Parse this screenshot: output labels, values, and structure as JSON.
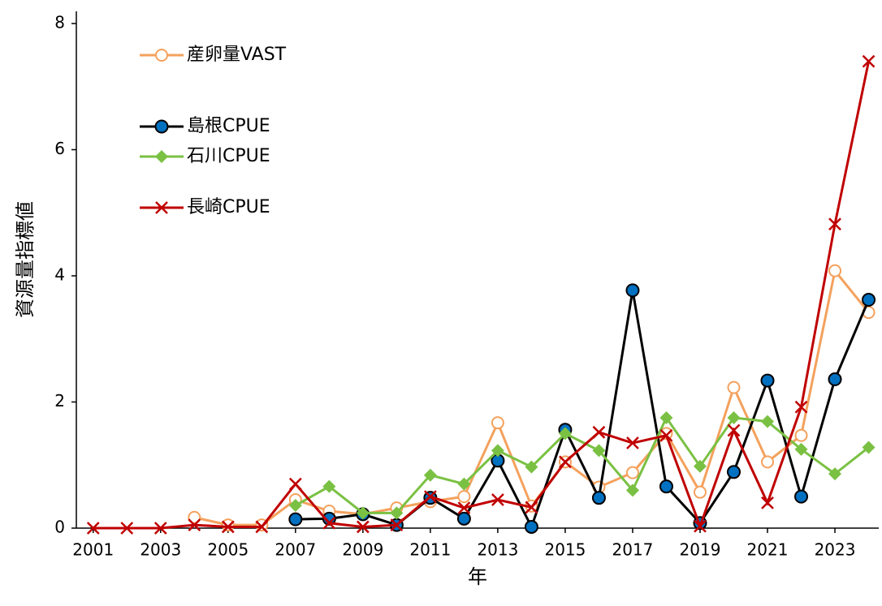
{
  "chart_data": {
    "type": "line",
    "xlabel": "年",
    "ylabel": "資源量指標値",
    "x": [
      2001,
      2002,
      2003,
      2004,
      2005,
      2006,
      2007,
      2008,
      2009,
      2010,
      2011,
      2012,
      2013,
      2014,
      2015,
      2016,
      2017,
      2018,
      2019,
      2020,
      2021,
      2022,
      2023,
      2024
    ],
    "series": [
      {
        "name": "産卵量VAST",
        "color": "#f4a15d",
        "values": [
          null,
          null,
          null,
          0.17,
          0.05,
          0.05,
          0.45,
          0.27,
          0.22,
          0.32,
          0.42,
          0.5,
          1.67,
          0.35,
          1.05,
          0.65,
          0.88,
          1.5,
          0.57,
          2.23,
          1.05,
          1.47,
          4.08,
          3.42
        ]
      },
      {
        "name": "島根CPUE",
        "color": "#000000",
        "values": [
          null,
          null,
          null,
          null,
          null,
          null,
          0.14,
          0.15,
          0.22,
          0.05,
          0.48,
          0.15,
          1.07,
          0.02,
          1.56,
          0.48,
          3.77,
          0.66,
          0.08,
          0.89,
          2.34,
          0.5,
          2.36,
          3.62
        ]
      },
      {
        "name": "石川CPUE",
        "color": "#7ac143",
        "values": [
          null,
          null,
          null,
          null,
          null,
          null,
          0.36,
          0.66,
          0.24,
          0.24,
          0.84,
          0.7,
          1.23,
          0.97,
          1.5,
          1.23,
          0.6,
          1.75,
          0.98,
          1.75,
          1.69,
          1.25,
          0.86,
          1.28
        ]
      },
      {
        "name": "長崎CPUE",
        "color": "#c00000",
        "values": [
          0,
          0,
          0,
          0.05,
          0.02,
          0.02,
          0.7,
          0.08,
          0.02,
          0.05,
          0.5,
          0.32,
          0.45,
          0.33,
          1.05,
          1.52,
          1.35,
          1.47,
          0.03,
          1.55,
          0.4,
          1.92,
          4.82,
          7.4
        ]
      }
    ],
    "xlim": [
      2000.5,
      2024.3
    ],
    "xticks": [
      2001,
      2003,
      2005,
      2007,
      2009,
      2011,
      2013,
      2015,
      2017,
      2019,
      2021,
      2023
    ],
    "ylim": [
      0,
      8
    ],
    "yticks": [
      0,
      2,
      4,
      6,
      8
    ],
    "grid": false,
    "legend": "upper left"
  }
}
